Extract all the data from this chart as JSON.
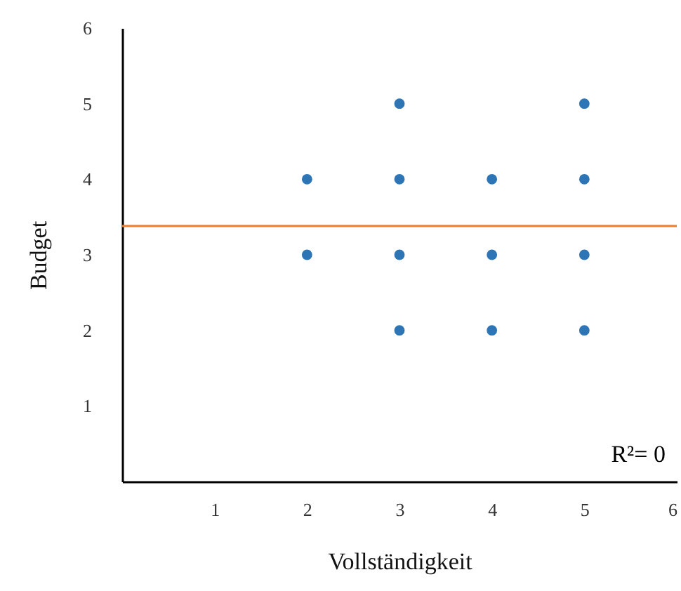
{
  "chart_data": {
    "type": "scatter",
    "xlabel": "Vollständigkeit",
    "ylabel": "Budget",
    "xlim": [
      0,
      6
    ],
    "ylim": [
      0,
      6
    ],
    "xticks": [
      1,
      2,
      3,
      4,
      5,
      6
    ],
    "yticks": [
      1,
      2,
      3,
      4,
      5,
      6
    ],
    "grid": false,
    "annotations": [
      "R²= 0"
    ],
    "series": [
      {
        "type": "scatter",
        "marker": "circle",
        "color": "#2e75b6",
        "x": [
          2,
          2,
          3,
          3,
          3,
          3,
          4,
          4,
          4,
          5,
          5,
          5,
          5
        ],
        "values": [
          4,
          3,
          5,
          4,
          3,
          2,
          4,
          3,
          2,
          5,
          4,
          3,
          2
        ]
      },
      {
        "type": "line",
        "color": "#ed7d31",
        "x": [
          0,
          6
        ],
        "values": [
          3.38,
          3.38
        ]
      }
    ]
  }
}
